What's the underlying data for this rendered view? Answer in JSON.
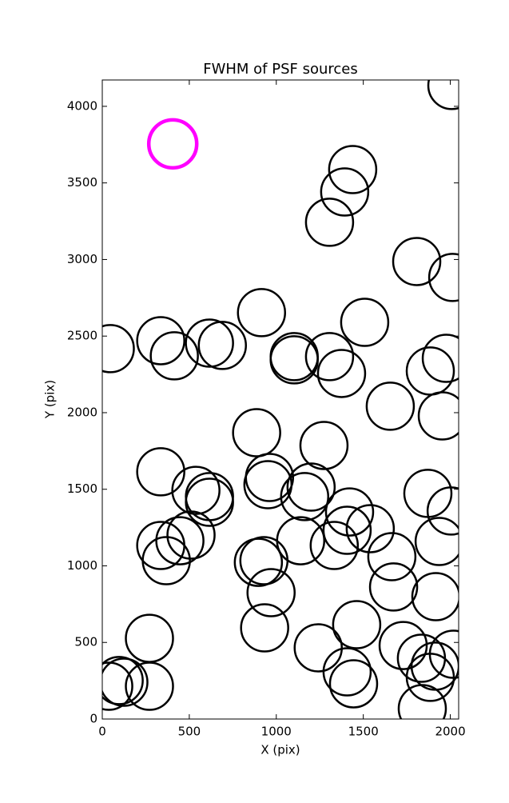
{
  "chart_data": {
    "type": "scatter",
    "title": "FWHM of PSF sources",
    "x_label": "X (pix)",
    "y_label": "Y (pix)",
    "xlim": [
      0,
      2048
    ],
    "ylim": [
      0,
      4172
    ],
    "xticks": [
      0,
      500,
      1000,
      1500,
      2000
    ],
    "yticks": [
      0,
      500,
      1000,
      1500,
      2000,
      2500,
      3000,
      3500,
      4000
    ],
    "series": [
      {
        "color": "#000000",
        "x": [
          46,
          336,
          414,
          616,
          690,
          915,
          1103,
          1103,
          1306,
          1375,
          1508,
          1306,
          1393,
          1439,
          1807,
          2014,
          2009,
          1885,
          1977,
          1954,
          1655,
          887,
          1274,
          961,
          952,
          336,
          538,
          616,
          616,
          1163,
          1200,
          1421,
          1407,
          1540,
          1333,
          1140,
          1871,
          2005,
          1936,
          1664,
          1674,
          1917,
          336,
          446,
          510,
          368,
          897,
          929,
          970,
          933,
          271,
          1462,
          1241,
          1729,
          1834,
          1913,
          1885,
          2018,
          1407,
          1444,
          1839,
          271,
          97,
          124,
          37
        ],
        "values": [
          2418,
          2470,
          2371,
          2454,
          2439,
          2653,
          2366,
          2345,
          2366,
          2256,
          2590,
          3243,
          3441,
          3587,
          2987,
          2883,
          4136,
          2272,
          2355,
          1979,
          2042,
          1869,
          1786,
          1577,
          1530,
          1614,
          1493,
          1452,
          1415,
          1452,
          1514,
          1352,
          1232,
          1243,
          1133,
          1164,
          1473,
          1358,
          1159,
          1060,
          862,
          799,
          1133,
          1164,
          1201,
          1034,
          1023,
          1034,
          825,
          595,
          527,
          616,
          465,
          480,
          397,
          345,
          272,
          423,
          308,
          230,
          68,
          214,
          251,
          240,
          214
        ]
      },
      {
        "color": "#ff00ff",
        "x": [
          405
        ],
        "values": [
          3755
        ]
      }
    ]
  }
}
